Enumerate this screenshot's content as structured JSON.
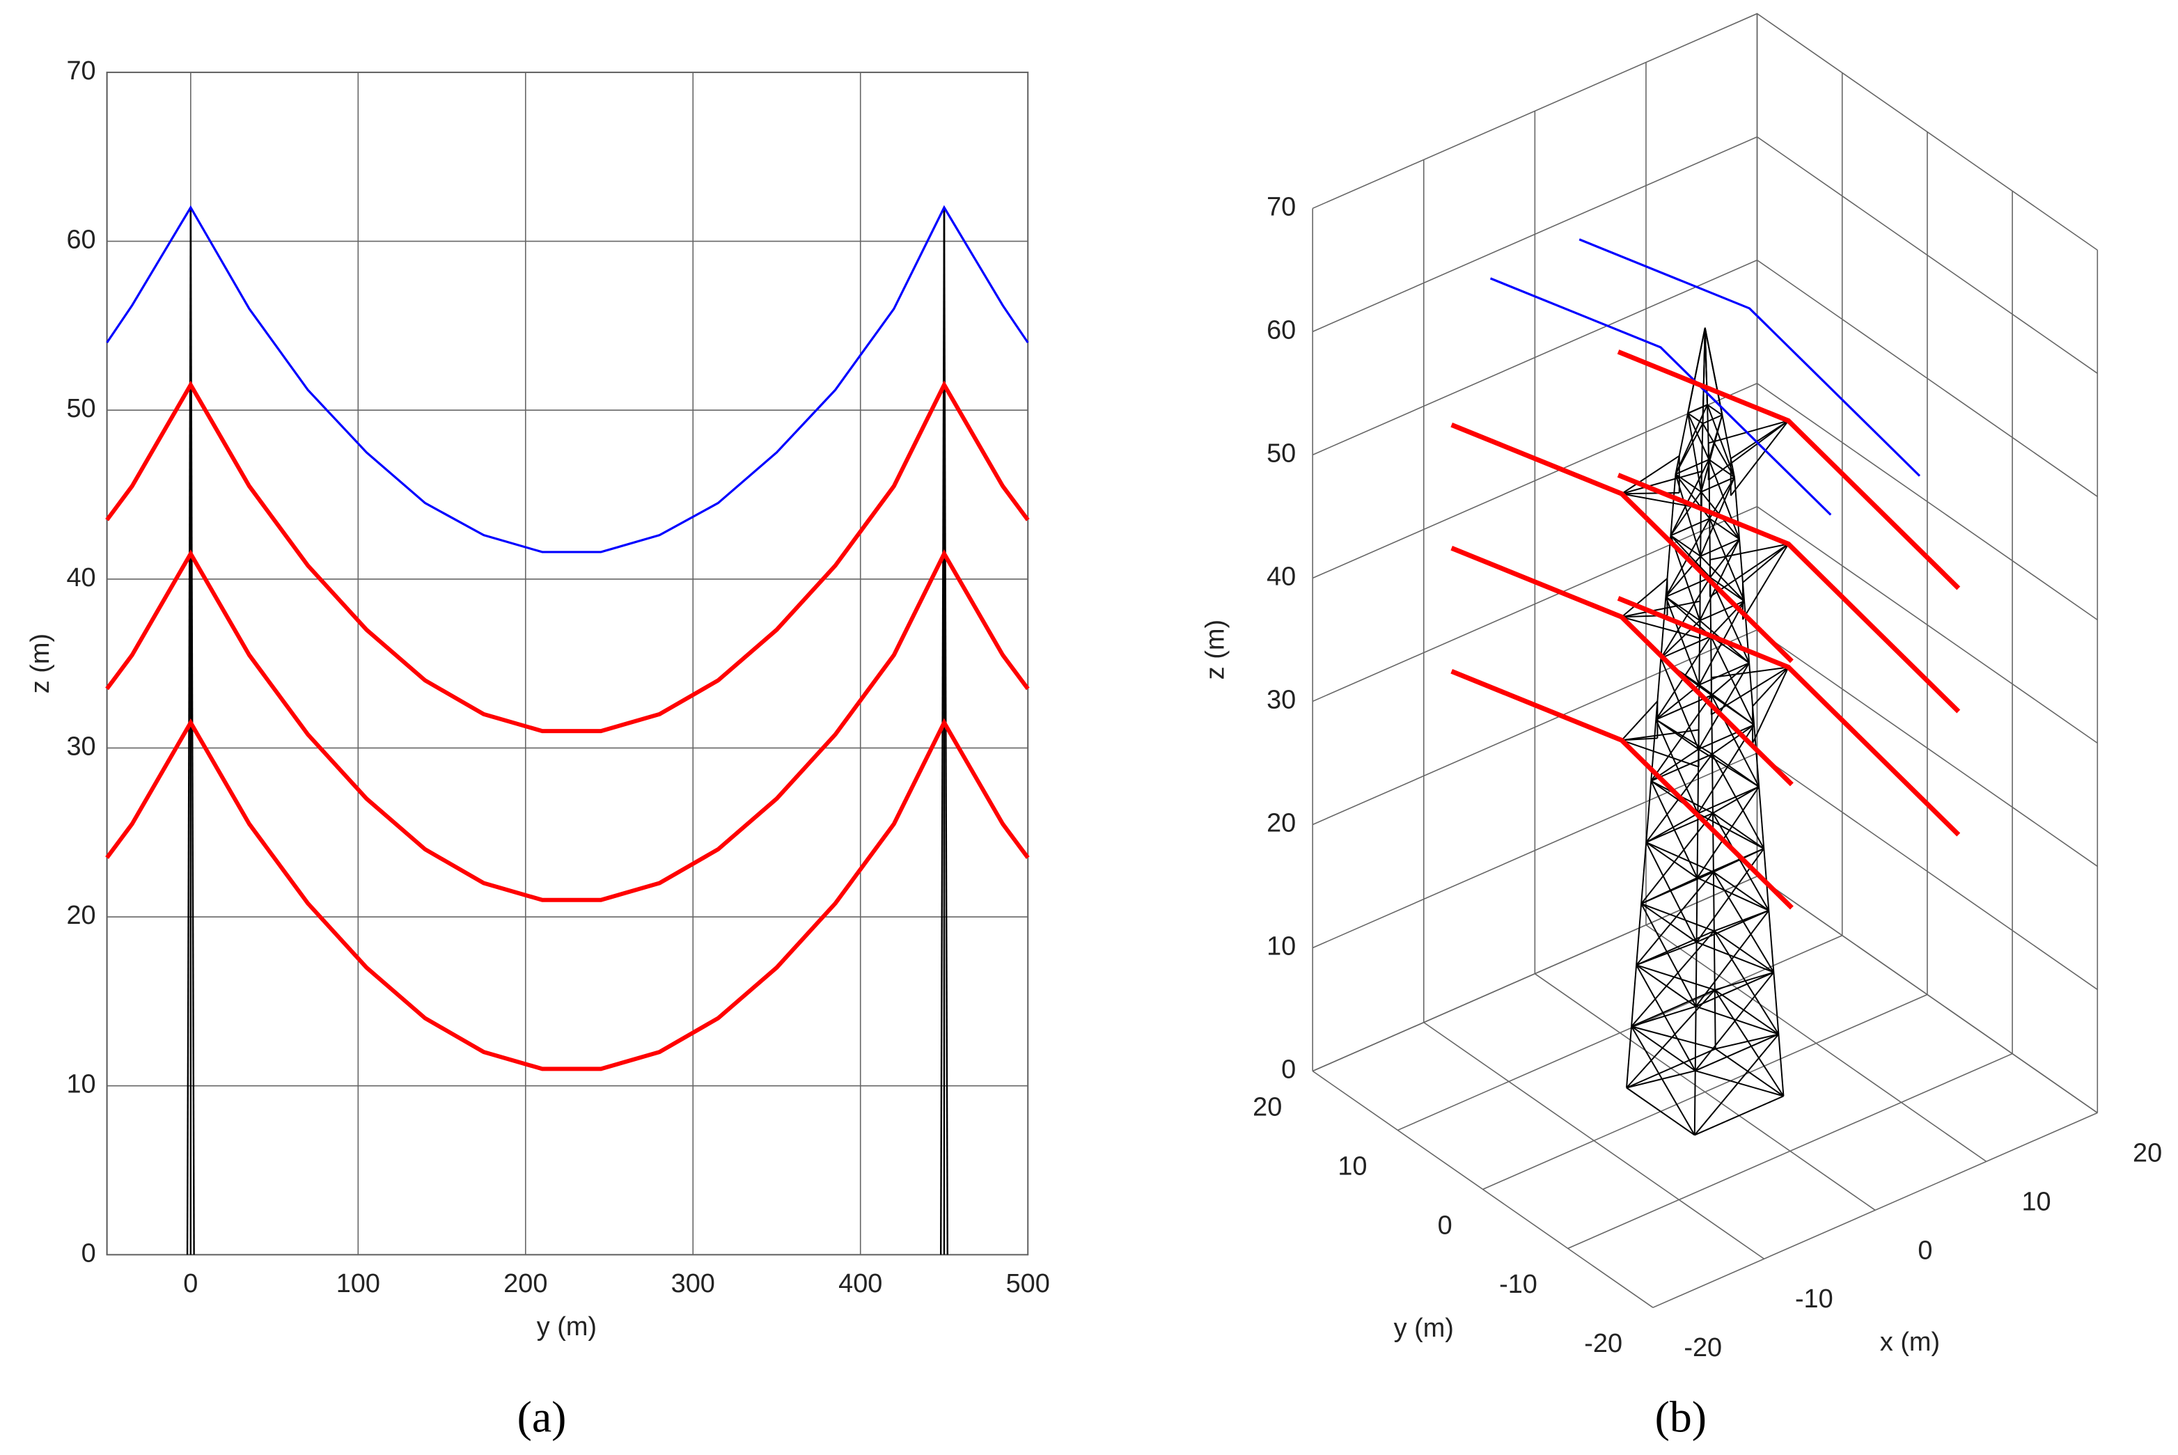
{
  "chart_data": [
    {
      "type": "line",
      "x": [
        -50,
        -35,
        0,
        35,
        70,
        105,
        140,
        175,
        210,
        245,
        280,
        315,
        350,
        385,
        420,
        450,
        485,
        500
      ],
      "series": [
        {
          "color": "#0000ff",
          "values": [
            54,
            56.2,
            62,
            56,
            51.2,
            47.5,
            44.5,
            42.6,
            41.6,
            41.6,
            42.6,
            44.5,
            47.5,
            51.2,
            56,
            62,
            56.2,
            54
          ]
        },
        {
          "color": "#ff0000",
          "values": [
            43.5,
            45.5,
            51.5,
            45.5,
            40.8,
            37,
            34,
            32,
            31,
            31,
            32,
            34,
            37,
            40.8,
            45.5,
            51.5,
            45.5,
            43.5
          ]
        },
        {
          "color": "#ff0000",
          "values": [
            33.5,
            35.5,
            41.5,
            35.5,
            30.8,
            27,
            24,
            22,
            21,
            21,
            22,
            24,
            27,
            30.8,
            35.5,
            41.5,
            35.5,
            33.5
          ]
        },
        {
          "color": "#ff0000",
          "values": [
            23.5,
            25.5,
            31.5,
            25.5,
            20.8,
            17,
            14,
            12,
            11,
            11,
            12,
            14,
            17,
            20.8,
            25.5,
            31.5,
            25.5,
            23.5
          ]
        }
      ],
      "towers": {
        "positions": [
          0,
          450
        ],
        "top": 62,
        "color": "#000000"
      },
      "xlim": [
        -50,
        500
      ],
      "xticks": [
        0,
        100,
        200,
        300,
        400,
        500
      ],
      "ylim": [
        0,
        70
      ],
      "yticks": [
        0,
        10,
        20,
        30,
        40,
        50,
        60,
        70
      ],
      "xlabel": "y (m)",
      "ylabel": "z (m)",
      "grid": true,
      "panel_label": "(a)"
    },
    {
      "type": "wireframe3d",
      "series": [
        {
          "color": "#0000ff",
          "x": -4,
          "y": [
            20,
            0,
            -20
          ],
          "z": [
            58,
            62,
            58
          ]
        },
        {
          "color": "#0000ff",
          "x": 4,
          "y": [
            20,
            0,
            -20
          ],
          "z": [
            58,
            62,
            58
          ]
        },
        {
          "color": "#ff0000",
          "x": -7.5,
          "y": [
            20,
            0,
            -20
          ],
          "z": [
            47.5,
            51.5,
            47.5
          ]
        },
        {
          "color": "#ff0000",
          "x": -7.5,
          "y": [
            20,
            0,
            -20
          ],
          "z": [
            37.5,
            41.5,
            37.5
          ]
        },
        {
          "color": "#ff0000",
          "x": -7.5,
          "y": [
            20,
            0,
            -20
          ],
          "z": [
            27.5,
            31.5,
            27.5
          ]
        },
        {
          "color": "#ff0000",
          "x": 7.5,
          "y": [
            20,
            0,
            -20
          ],
          "z": [
            47.5,
            51.5,
            47.5
          ]
        },
        {
          "color": "#ff0000",
          "x": 7.5,
          "y": [
            20,
            0,
            -20
          ],
          "z": [
            37.5,
            41.5,
            37.5
          ]
        },
        {
          "color": "#ff0000",
          "x": 7.5,
          "y": [
            20,
            0,
            -20
          ],
          "z": [
            27.5,
            31.5,
            27.5
          ]
        }
      ],
      "tower": {
        "top": 62,
        "arms": [
          51.5,
          41.5,
          31.5
        ],
        "color": "#000000"
      },
      "xlim": [
        -20,
        20
      ],
      "xticks": [
        -20,
        -10,
        0,
        10,
        20
      ],
      "ylim": [
        -20,
        20
      ],
      "yticks": [
        -20,
        -10,
        0,
        10,
        20
      ],
      "zlim": [
        0,
        70
      ],
      "zticks": [
        0,
        10,
        20,
        30,
        40,
        50,
        60,
        70
      ],
      "xlabel": "x (m)",
      "ylabel": "y (m)",
      "zlabel": "z (m)",
      "grid": true,
      "panel_label": "(b)"
    }
  ]
}
